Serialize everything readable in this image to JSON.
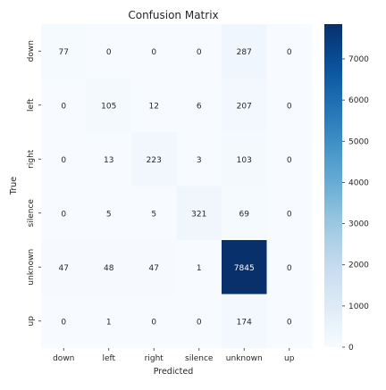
{
  "chart_data": {
    "type": "heatmap",
    "title": "Confusion Matrix",
    "xlabel": "Predicted",
    "ylabel": "True",
    "x_categories": [
      "down",
      "left",
      "right",
      "silence",
      "unknown",
      "up"
    ],
    "y_categories": [
      "down",
      "left",
      "right",
      "silence",
      "unknown",
      "up"
    ],
    "values": [
      [
        77,
        0,
        0,
        0,
        287,
        0
      ],
      [
        0,
        105,
        12,
        6,
        207,
        0
      ],
      [
        0,
        13,
        223,
        3,
        103,
        0
      ],
      [
        0,
        5,
        5,
        321,
        69,
        0
      ],
      [
        47,
        48,
        47,
        1,
        7845,
        0
      ],
      [
        0,
        1,
        0,
        0,
        174,
        0
      ]
    ],
    "colorbar": {
      "min": 0,
      "max": 7845,
      "ticks": [
        0,
        1000,
        2000,
        3000,
        4000,
        5000,
        6000,
        7000
      ],
      "colormap": "Blues"
    },
    "grid": false
  }
}
